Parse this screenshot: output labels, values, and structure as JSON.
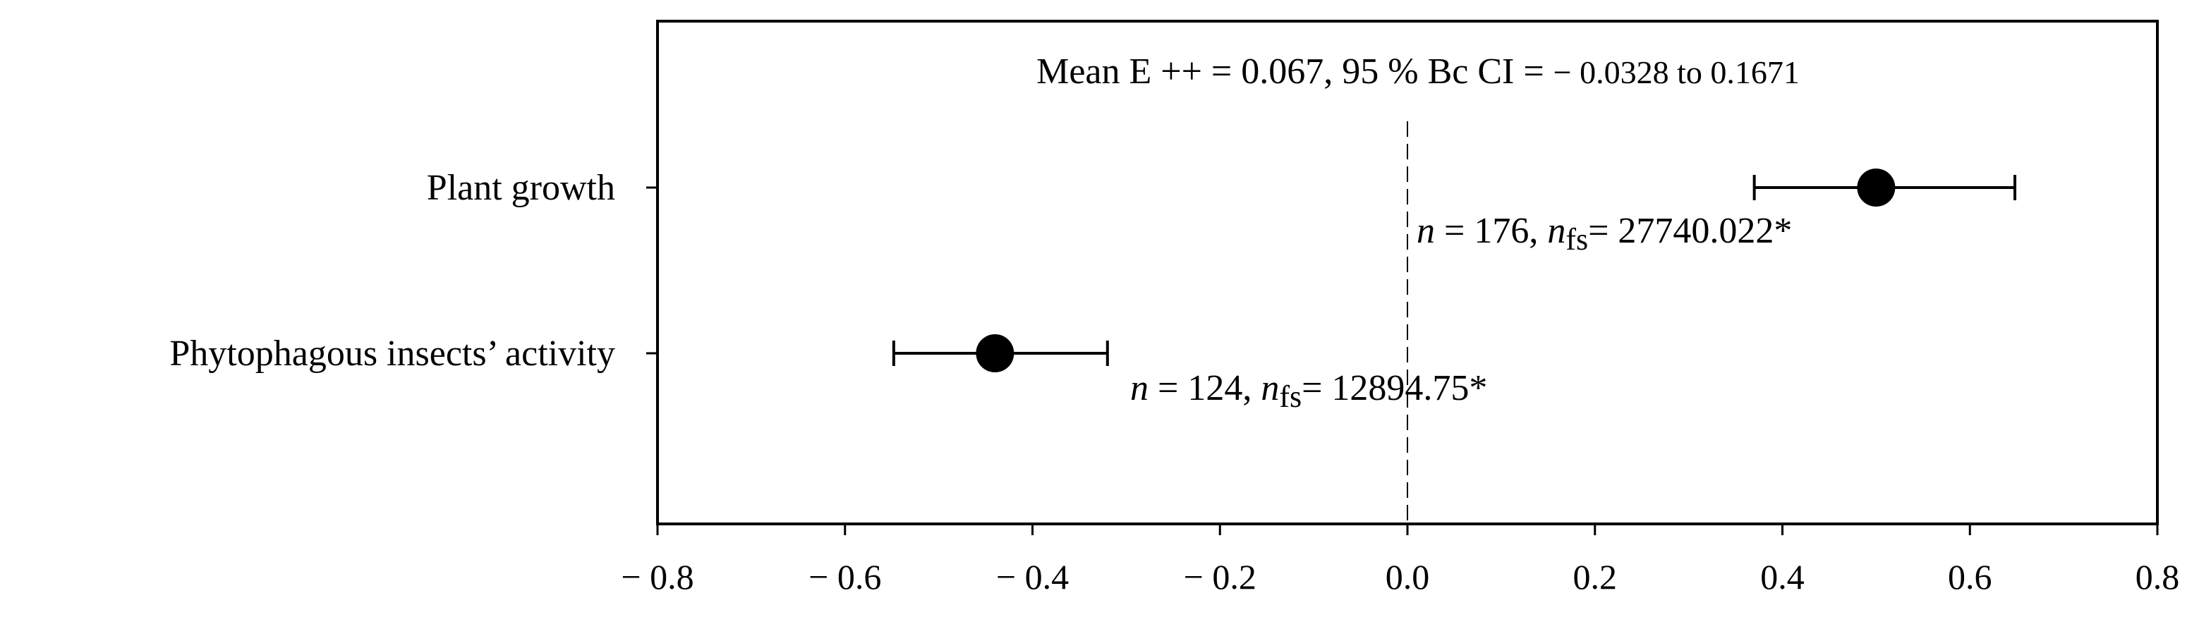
{
  "chart_data": {
    "type": "forest",
    "summary": {
      "prefix": "Mean E ++ = 0.067,  95 % Bc CI = ",
      "ci_low_text": "− 0.0328",
      "connector": " to ",
      "ci_high_text": "0.1671",
      "mean": 0.067,
      "ci_low": -0.0328,
      "ci_high": 0.1671
    },
    "categories": [
      "Plant growth",
      "Phytophagous insects’ activity"
    ],
    "points": [
      {
        "label": "Plant growth",
        "value": 0.5,
        "ci_low": 0.37,
        "ci_high": 0.648,
        "annot_n": "176",
        "annot_nfs": "27740.022*"
      },
      {
        "label": "Phytophagous insects’ activity",
        "value": -0.44,
        "ci_low": -0.548,
        "ci_high": -0.32,
        "annot_n": "124",
        "annot_nfs": "12894.75*"
      }
    ],
    "annotation_text": {
      "n_symbol": "n",
      "equals": " = ",
      "sep": ", ",
      "nfs_sub": "fs",
      "nfs_equals": "= "
    },
    "xlim": [
      -0.8,
      0.8
    ],
    "xticks": [
      -0.8,
      -0.6,
      -0.4,
      -0.2,
      0.0,
      0.2,
      0.4,
      0.6,
      0.8
    ],
    "xtick_labels": [
      "− 0.8",
      "− 0.6",
      "− 0.4",
      "− 0.2",
      "0.0",
      "0.2",
      "0.4",
      "0.6",
      "0.8"
    ],
    "reference_line": 0.0,
    "xlabel": "",
    "ylabel": "",
    "grid": false
  }
}
